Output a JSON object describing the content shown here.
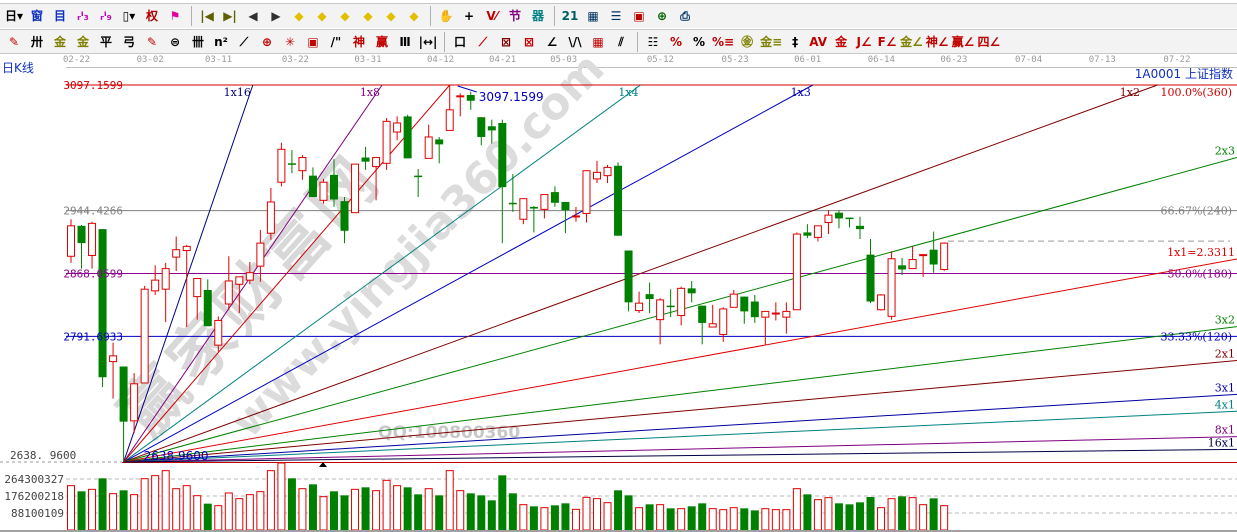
{
  "toolbar": {
    "row1": [
      {
        "name": "period-select-button",
        "glyph": "日▾",
        "color": "#000000"
      },
      {
        "name": "window-icon",
        "glyph": "窗",
        "color": "#1030c0"
      },
      {
        "name": "notes-icon",
        "glyph": "目",
        "color": "#1030c0"
      },
      {
        "name": "chart-3-icon",
        "glyph": "ᵣᴵ₃",
        "color": "#c000c0"
      },
      {
        "name": "chart-9-icon",
        "glyph": "ᵣᴵ₉",
        "color": "#c000c0"
      },
      {
        "name": "candle-type-button",
        "glyph": "▯▾",
        "color": "#000000"
      },
      {
        "name": "rights-adjust-icon",
        "glyph": "权",
        "color": "#b00000"
      },
      {
        "name": "flag-icon",
        "glyph": "⚑",
        "color": "#e000a0"
      },
      {
        "sep": true
      },
      {
        "name": "first-page-icon",
        "glyph": "|◀",
        "color": "#606000"
      },
      {
        "name": "last-page-icon",
        "glyph": "▶|",
        "color": "#606000"
      },
      {
        "name": "scroll-left-icon",
        "glyph": "◀",
        "color": "#303030"
      },
      {
        "name": "scroll-right-icon",
        "glyph": "▶",
        "color": "#303030"
      },
      {
        "name": "move-left-icon",
        "glyph": "◆",
        "color": "#e0c000"
      },
      {
        "name": "move-right-icon",
        "glyph": "◆",
        "color": "#e0c000"
      },
      {
        "name": "expand-icon",
        "glyph": "◆",
        "color": "#e0c000"
      },
      {
        "name": "shrink-icon",
        "glyph": "◆",
        "color": "#e0c000"
      },
      {
        "name": "zoom-in-icon",
        "glyph": "◆",
        "color": "#e0c000"
      },
      {
        "name": "zoom-out-icon",
        "glyph": "◆",
        "color": "#e0c000"
      },
      {
        "sep": true
      },
      {
        "name": "hand-icon",
        "glyph": "✋",
        "color": "#303030"
      },
      {
        "name": "crosshair-icon",
        "glyph": "+",
        "color": "#000000"
      },
      {
        "name": "draw-line-icon",
        "glyph": "V⁄",
        "color": "#c00000"
      },
      {
        "name": "section-icon",
        "glyph": "节",
        "color": "#800080"
      },
      {
        "name": "brain-icon",
        "glyph": "器",
        "color": "#008080"
      },
      {
        "sep": true
      },
      {
        "name": "calendar-icon",
        "glyph": "21",
        "color": "#006060"
      },
      {
        "name": "calculator-icon",
        "glyph": "▦",
        "color": "#003060"
      },
      {
        "name": "document-icon",
        "glyph": "☰",
        "color": "#003060"
      },
      {
        "name": "save-icon",
        "glyph": "▣",
        "color": "#c00000"
      },
      {
        "name": "network-icon",
        "glyph": "⊕",
        "color": "#006000"
      },
      {
        "name": "print-icon",
        "glyph": "⎙",
        "color": "#003060"
      }
    ],
    "row2": [
      {
        "name": "pencil-icon",
        "glyph": "✎",
        "color": "#c00000"
      },
      {
        "name": "parallel-lines-icon",
        "glyph": "卅",
        "color": "#000000"
      },
      {
        "name": "golden-ratio-icon",
        "glyph": "金",
        "color": "#808000"
      },
      {
        "name": "golden-split-icon",
        "glyph": "金",
        "color": "#808000"
      },
      {
        "name": "percent-line-icon",
        "glyph": "平",
        "color": "#000000"
      },
      {
        "name": "wave-icon",
        "glyph": "弓",
        "color": "#000000"
      },
      {
        "name": "pencil-2-icon",
        "glyph": "✎",
        "color": "#c00000"
      },
      {
        "name": "circle-icon",
        "glyph": "⊜",
        "color": "#000000"
      },
      {
        "name": "cycle-lines-icon",
        "glyph": "卌",
        "color": "#000000"
      },
      {
        "name": "n-squared-icon",
        "glyph": "n²",
        "color": "#000000"
      },
      {
        "name": "arrow-icon",
        "glyph": "⟋",
        "color": "#000000"
      },
      {
        "name": "target-icon",
        "glyph": "⊕",
        "color": "#c00000"
      },
      {
        "name": "web-icon",
        "glyph": "✳",
        "color": "#c00000"
      },
      {
        "name": "box-icon",
        "glyph": "▣",
        "color": "#c00000"
      },
      {
        "name": "angle-icon",
        "glyph": "/\"",
        "color": "#000000"
      },
      {
        "name": "god-number-icon",
        "glyph": "神",
        "color": "#c00000"
      },
      {
        "name": "winner-icon",
        "glyph": "赢",
        "color": "#c00000"
      },
      {
        "name": "numbered-lines-icon",
        "glyph": "Ⅲ",
        "color": "#000000"
      },
      {
        "name": "measure-icon",
        "glyph": "|↔|",
        "color": "#000000"
      },
      {
        "sep": true
      },
      {
        "name": "rectangle-icon",
        "glyph": "口",
        "color": "#000000"
      },
      {
        "name": "gann-fan-icon",
        "glyph": "⟋",
        "color": "#c00000"
      },
      {
        "name": "gann-box-icon",
        "glyph": "⊠",
        "color": "#800000"
      },
      {
        "name": "gann-square-icon",
        "glyph": "⊠",
        "color": "#c00000"
      },
      {
        "name": "angle-line-icon",
        "glyph": "∠",
        "color": "#000000"
      },
      {
        "name": "v-line-icon",
        "glyph": "\\/\\",
        "color": "#000000"
      },
      {
        "name": "grid-icon",
        "glyph": "▦",
        "color": "#c00000"
      },
      {
        "name": "speed-lines-icon",
        "glyph": "⫽",
        "color": "#000000"
      },
      {
        "sep": true
      },
      {
        "name": "list-icon",
        "glyph": "☷",
        "color": "#000000"
      },
      {
        "name": "percent-fan-icon",
        "glyph": "%",
        "color": "#c00000"
      },
      {
        "name": "percent-icon",
        "glyph": "%",
        "color": "#000000"
      },
      {
        "name": "percent-lines-icon",
        "glyph": "%≡",
        "color": "#c00000"
      },
      {
        "name": "gold-circle-icon",
        "glyph": "㊎",
        "color": "#808000"
      },
      {
        "name": "gold-lines-icon",
        "glyph": "金≡",
        "color": "#808000"
      },
      {
        "name": "bar-icon",
        "glyph": "‡",
        "color": "#000000"
      },
      {
        "name": "av-icon",
        "glyph": "AV",
        "color": "#c00000"
      },
      {
        "name": "gold-bar-icon",
        "glyph": "金",
        "color": "#c00000"
      },
      {
        "name": "j-angle-icon",
        "glyph": "J∠",
        "color": "#c00000"
      },
      {
        "name": "f-angle-icon",
        "glyph": "F∠",
        "color": "#c00000"
      },
      {
        "name": "gold-angle-icon",
        "glyph": "金∠",
        "color": "#808000"
      },
      {
        "name": "god-angle-icon",
        "glyph": "神∠",
        "color": "#c00000"
      },
      {
        "name": "winner-angle-icon",
        "glyph": "赢∠",
        "color": "#c00000"
      },
      {
        "name": "four-angle-icon",
        "glyph": "四∠",
        "color": "#c00000"
      }
    ]
  },
  "period_label": "日K线",
  "symbol": "1A0001 上证指数",
  "date_axis": [
    {
      "label": "02-22",
      "bar": 0
    },
    {
      "label": "03-02",
      "bar": 7
    },
    {
      "label": "03-11",
      "bar": 13.5
    },
    {
      "label": "03-22",
      "bar": 20.8
    },
    {
      "label": "03-31",
      "bar": 27.7
    },
    {
      "label": "04-12",
      "bar": 34.6
    },
    {
      "label": "04-21",
      "bar": 40.5
    },
    {
      "label": "05-03",
      "bar": 46.3
    },
    {
      "label": "05-12",
      "bar": 55.5
    },
    {
      "label": "05-23",
      "bar": 62.6
    },
    {
      "label": "06-01",
      "bar": 69.5
    },
    {
      "label": "06-14",
      "bar": 76.5
    },
    {
      "label": "06-23",
      "bar": 83.4
    },
    {
      "label": "07-04",
      "bar": 90.5
    },
    {
      "label": "07-13",
      "bar": 97.5
    },
    {
      "label": "07-22",
      "bar": 104.6
    }
  ],
  "watermark": {
    "brand": "赢家财富网",
    "site": "www.yingjia360.com",
    "qq": "QQ:100800360"
  },
  "chart_data": {
    "type": "candlestick",
    "colors": {
      "up": "#e00000",
      "down": "#008000"
    },
    "price_range": [
      2638.96,
      3097.1599
    ],
    "candles_ohlc": [
      [
        2889,
        2934,
        2881,
        2926
      ],
      [
        2926,
        2927,
        2874,
        2905
      ],
      [
        2890,
        2931,
        2874,
        2929
      ],
      [
        2922,
        2922,
        2730,
        2742
      ],
      [
        2761,
        2784,
        2716,
        2768
      ],
      [
        2755,
        2755,
        2638.96,
        2688
      ],
      [
        2689,
        2747,
        2674,
        2734
      ],
      [
        2735,
        2853,
        2735,
        2849
      ],
      [
        2847,
        2878,
        2842,
        2860
      ],
      [
        2849,
        2881,
        2809,
        2874
      ],
      [
        2888,
        2913,
        2871,
        2897
      ],
      [
        2896,
        2903,
        2803,
        2901
      ],
      [
        2840,
        2862,
        2812,
        2862
      ],
      [
        2848,
        2861,
        2804,
        2804
      ],
      [
        2781,
        2816,
        2773,
        2811
      ],
      [
        2831,
        2889,
        2824,
        2859
      ],
      [
        2855,
        2864,
        2820,
        2864
      ],
      [
        2860,
        2882,
        2855,
        2869
      ],
      [
        2877,
        2921,
        2858,
        2905
      ],
      [
        2917,
        2972,
        2909,
        2955
      ],
      [
        2979,
        3027,
        2974,
        3019
      ],
      [
        3002,
        3018,
        2990,
        3001
      ],
      [
        2993,
        3012,
        2982,
        3009
      ],
      [
        2987,
        2997,
        2961,
        2961
      ],
      [
        2957,
        2983,
        2953,
        2979
      ],
      [
        2988,
        3007,
        2949,
        2958
      ],
      [
        2956,
        2961,
        2905,
        2920
      ],
      [
        2942,
        3001,
        2942,
        3001
      ],
      [
        3009,
        3022,
        2994,
        3004
      ],
      [
        2998,
        3009,
        2957,
        3009
      ],
      [
        3002,
        3057,
        2994,
        3053
      ],
      [
        3040,
        3059,
        3030,
        3051
      ],
      [
        3059,
        3061,
        3008,
        3008
      ],
      [
        2987,
        2995,
        2961,
        2986
      ],
      [
        3008,
        3049,
        3008,
        3034
      ],
      [
        3031,
        3034,
        3002,
        3025
      ],
      [
        3042,
        3097.16,
        3042,
        3067
      ],
      [
        3083,
        3087,
        3059,
        3084
      ],
      [
        3085,
        3089,
        3067,
        3078
      ],
      [
        3058,
        3058,
        3024,
        3034
      ],
      [
        3047,
        3055,
        3026,
        3042
      ],
      [
        3051,
        3055,
        2905,
        2973
      ],
      [
        2954,
        2989,
        2943,
        2953
      ],
      [
        2934,
        2959,
        2928,
        2959
      ],
      [
        2949,
        2950,
        2918,
        2947
      ],
      [
        2946,
        2964,
        2935,
        2964
      ],
      [
        2967,
        2974,
        2949,
        2954
      ],
      [
        2955,
        2955,
        2917,
        2945
      ],
      [
        2937,
        2949,
        2931,
        2938
      ],
      [
        2941,
        2993,
        2930,
        2993
      ],
      [
        2983,
        3005,
        2978,
        2991
      ],
      [
        2987,
        3000,
        2978,
        2997
      ],
      [
        2999,
        3003,
        2914,
        2914
      ],
      [
        2896,
        2896,
        2822,
        2833
      ],
      [
        2823,
        2846,
        2820,
        2832
      ],
      [
        2843,
        2857,
        2820,
        2837
      ],
      [
        2812,
        2838,
        2782,
        2836
      ],
      [
        2829,
        2849,
        2815,
        2828
      ],
      [
        2817,
        2852,
        2805,
        2850
      ],
      [
        2850,
        2859,
        2833,
        2844
      ],
      [
        2829,
        2829,
        2782,
        2808
      ],
      [
        2803,
        2830,
        2803,
        2807
      ],
      [
        2794,
        2827,
        2785,
        2825
      ],
      [
        2827,
        2848,
        2827,
        2843
      ],
      [
        2840,
        2840,
        2807,
        2822
      ],
      [
        2834,
        2842,
        2808,
        2815
      ],
      [
        2815,
        2822,
        2781,
        2822
      ],
      [
        2819,
        2833,
        2811,
        2820
      ],
      [
        2815,
        2833,
        2795,
        2822
      ],
      [
        2824,
        2918,
        2824,
        2916
      ],
      [
        2918,
        2928,
        2911,
        2914
      ],
      [
        2912,
        2926,
        2907,
        2926
      ],
      [
        2930,
        2945,
        2916,
        2939
      ],
      [
        2942,
        2945,
        2923,
        2935
      ],
      [
        2936,
        2936,
        2924,
        2935
      ],
      [
        2926,
        2937,
        2910,
        2922
      ],
      [
        2891,
        2910,
        2832,
        2834
      ],
      [
        2824,
        2843,
        2823,
        2842
      ],
      [
        2816,
        2895,
        2812,
        2886
      ],
      [
        2878,
        2887,
        2866,
        2873
      ],
      [
        2874,
        2901,
        2874,
        2885
      ],
      [
        2890,
        2890,
        2864,
        2891
      ],
      [
        2897,
        2919,
        2869,
        2879
      ],
      [
        2873,
        2906,
        2871,
        2905
      ]
    ],
    "volumes": [
      229800000,
      200400000,
      210700000,
      267800000,
      188300000,
      205600000,
      183100000,
      266000000,
      281600000,
      307500000,
      214200000,
      229800000,
      177900000,
      136500000,
      126100000,
      191800000,
      162400000,
      183100000,
      198700000,
      307500000,
      352400000,
      267800000,
      214200000,
      236700000,
      172700000,
      200400000,
      179700000,
      210700000,
      221100000,
      203800000,
      257400000,
      229800000,
      221100000,
      184800000,
      214200000,
      179700000,
      307500000,
      203800000,
      190000000,
      179700000,
      153700000,
      283300000,
      190000000,
      131300000,
      122600000,
      115700000,
      127800000,
      138200000,
      107100000,
      169300000,
      162400000,
      141700000,
      205600000,
      179700000,
      115700000,
      133000000,
      131300000,
      112300000,
      110600000,
      122600000,
      138200000,
      110600000,
      105400000,
      115700000,
      112300000,
      101900000,
      110600000,
      105400000,
      105400000,
      214200000,
      184800000,
      157200000,
      167600000,
      138200000,
      133000000,
      143400000,
      171000000,
      115700000,
      162400000,
      174500000,
      167600000,
      131300000,
      164100000,
      126100000
    ],
    "price_axis": {
      "high_label": "3097.1599",
      "low_label": "2638. 9600",
      "low_value": 2638.96,
      "high_marker_label": "3097.1599",
      "low_marker_label": "2638.9600"
    },
    "volume_axis": {
      "ticks": [
        {
          "label": "264300327",
          "value": 264300327
        },
        {
          "label": "176200218",
          "value": 176200218
        },
        {
          "label": "88100109",
          "value": 88100109
        }
      ]
    },
    "retracement_levels": [
      {
        "price": 3097.1599,
        "left_label": "3097.1599",
        "right_label": "100.0%(360)",
        "color": "#d00000"
      },
      {
        "price": 2944.4266,
        "left_label": "2944.4266",
        "right_label": "66.67%(240)",
        "color": "#808080"
      },
      {
        "price": 2868.0599,
        "left_label": "2868.0599",
        "right_label": "50.0%(180)",
        "color": "#900090"
      },
      {
        "price": 2791.6933,
        "left_label": "2791.6933",
        "right_label": "33.33%(120)",
        "color": "#0000c0"
      }
    ],
    "last_close_price": 2905,
    "gann_fan": {
      "origin_bar": 5,
      "origin_price": 2638.96,
      "unit_per_bar": 2.3311,
      "lines": [
        {
          "label": "1x16",
          "ratio": 16,
          "color": "#000080"
        },
        {
          "label": "1x8",
          "ratio": 8,
          "color": "#800080"
        },
        {
          "label": "1x4",
          "ratio": 4,
          "color": "#008080"
        },
        {
          "label": "1x3",
          "ratio": 3,
          "color": "#0000c0"
        },
        {
          "label": "1x2",
          "ratio": 2,
          "color": "#800000"
        },
        {
          "label": "2x3",
          "ratio": 1.5,
          "color": "#008000"
        },
        {
          "label": "1x1=2.3311",
          "ratio": 1,
          "color": "#e00000"
        },
        {
          "label": "3x2",
          "ratio": 0.6667,
          "color": "#008000"
        },
        {
          "label": "2x1",
          "ratio": 0.5,
          "color": "#800000"
        },
        {
          "label": "3x1",
          "ratio": 0.3333,
          "color": "#0000a0"
        },
        {
          "label": "4x1",
          "ratio": 0.25,
          "color": "#008080"
        },
        {
          "label": "8x1",
          "ratio": 0.125,
          "color": "#800080"
        },
        {
          "label": "16x1",
          "ratio": 0.0625,
          "color": "#000040"
        }
      ],
      "high_bar": 36
    }
  }
}
